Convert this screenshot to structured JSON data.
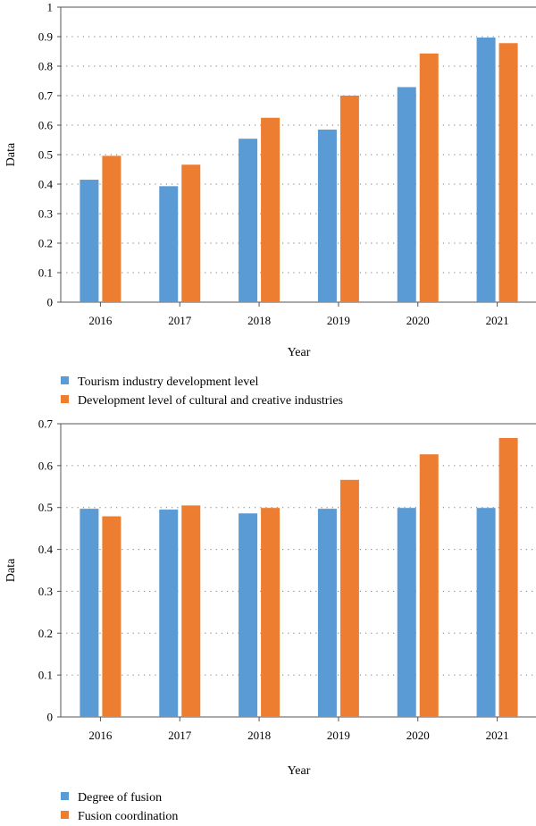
{
  "chart_data": [
    {
      "type": "bar",
      "categories": [
        "2016",
        "2017",
        "2018",
        "2019",
        "2020",
        "2021"
      ],
      "series": [
        {
          "name": "Tourism industry development level",
          "color": "#5b9bd5",
          "values": [
            0.415,
            0.393,
            0.554,
            0.585,
            0.729,
            0.897
          ]
        },
        {
          "name": "Development level of cultural and creative industries",
          "color": "#ed7d31",
          "values": [
            0.496,
            0.466,
            0.625,
            0.7,
            0.843,
            0.878
          ]
        }
      ],
      "yticks": [
        "0",
        "0.1",
        "0.2",
        "0.3",
        "0.4",
        "0.5",
        "0.6",
        "0.7",
        "0.8",
        "0.9",
        "1"
      ],
      "xlabel": "Year",
      "ylabel": "Data",
      "ylim": [
        0,
        1
      ],
      "grid": true,
      "legend_position": "bottom-left"
    },
    {
      "type": "bar",
      "categories": [
        "2016",
        "2017",
        "2018",
        "2019",
        "2020",
        "2021"
      ],
      "series": [
        {
          "name": "Degree of fusion",
          "color": "#5b9bd5",
          "values": [
            0.497,
            0.495,
            0.486,
            0.497,
            0.499,
            0.499
          ]
        },
        {
          "name": "Fusion coordination",
          "color": "#ed7d31",
          "values": [
            0.479,
            0.505,
            0.499,
            0.566,
            0.627,
            0.666
          ]
        }
      ],
      "yticks": [
        "0",
        "0.1",
        "0.2",
        "0.3",
        "0.4",
        "0.5",
        "0.6",
        "0.7"
      ],
      "xlabel": "Year",
      "ylabel": "Data",
      "ylim": [
        0,
        0.7
      ],
      "grid": true,
      "legend_position": "bottom-left"
    }
  ]
}
